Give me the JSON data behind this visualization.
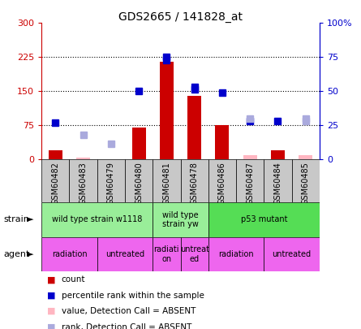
{
  "title": "GDS2665 / 141828_at",
  "samples": [
    "GSM60482",
    "GSM60483",
    "GSM60479",
    "GSM60480",
    "GSM60481",
    "GSM60478",
    "GSM60486",
    "GSM60487",
    "GSM60484",
    "GSM60485"
  ],
  "count_values": [
    20,
    null,
    null,
    70,
    215,
    140,
    75,
    null,
    20,
    null
  ],
  "count_absent": [
    null,
    5,
    null,
    null,
    null,
    null,
    null,
    10,
    null,
    10
  ],
  "rank_present": [
    null,
    null,
    null,
    150,
    225,
    155,
    null,
    null,
    null,
    null
  ],
  "rank_absent": [
    null,
    55,
    35,
    null,
    null,
    null,
    null,
    90,
    null,
    90
  ],
  "percentile_present": [
    27,
    null,
    null,
    null,
    73,
    53,
    49,
    28,
    28,
    null
  ],
  "percentile_absent": [
    null,
    null,
    null,
    null,
    null,
    null,
    null,
    null,
    null,
    28
  ],
  "ylim_left": [
    0,
    300
  ],
  "ylim_right": [
    0,
    100
  ],
  "yticks_left": [
    0,
    75,
    150,
    225,
    300
  ],
  "ytick_labels_left": [
    "0",
    "75",
    "150",
    "225",
    "300"
  ],
  "yticks_right": [
    0,
    25,
    50,
    75,
    100
  ],
  "ytick_labels_right": [
    "0",
    "25",
    "50",
    "75",
    "100%"
  ],
  "strain_groups": [
    {
      "label": "wild type strain w1118",
      "start": 0,
      "end": 4,
      "color": "#90EE90"
    },
    {
      "label": "wild type\nstrain yw",
      "start": 4,
      "end": 6,
      "color": "#90EE90"
    },
    {
      "label": "p53 mutant",
      "start": 6,
      "end": 10,
      "color": "#55DD55"
    }
  ],
  "agent_groups": [
    {
      "label": "radiation",
      "start": 0,
      "end": 2
    },
    {
      "label": "untreated",
      "start": 2,
      "end": 4
    },
    {
      "label": "radiati\non",
      "start": 4,
      "end": 5
    },
    {
      "label": "untreat\ned",
      "start": 5,
      "end": 6
    },
    {
      "label": "radiation",
      "start": 6,
      "end": 8
    },
    {
      "label": "untreated",
      "start": 8,
      "end": 10
    }
  ],
  "bar_color": "#CC0000",
  "bar_absent_color": "#FFB6C1",
  "rank_color": "#0000CC",
  "rank_absent_color": "#AAAADD",
  "plot_bg": "#FFFFFF",
  "tick_bg": "#C8C8C8",
  "left_axis_color": "#CC0000",
  "right_axis_color": "#0000CC",
  "strain_color": "#99EE99",
  "agent_color": "#EE66EE"
}
